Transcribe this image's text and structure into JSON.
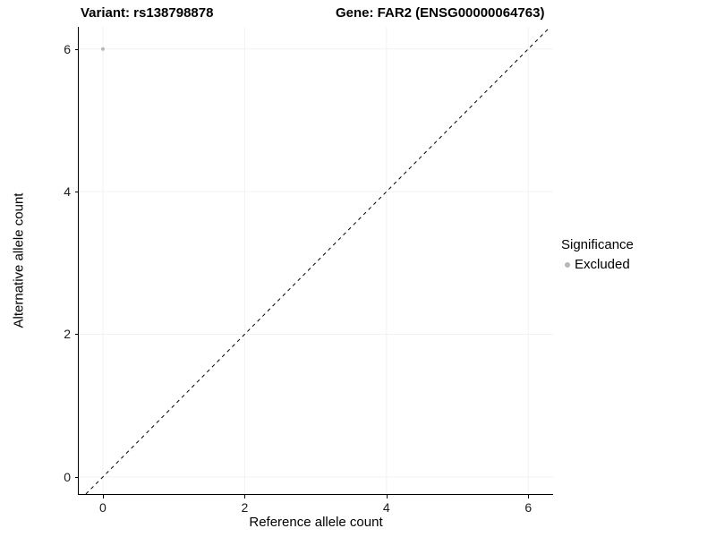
{
  "page": {
    "background": "#ffffff"
  },
  "chart_data": {
    "type": "scatter",
    "titles": {
      "left": "Variant: rs138798878",
      "right": "Gene: FAR2 (ENSG00000064763)"
    },
    "xlabel": "Reference allele count",
    "ylabel": "Alternative allele count",
    "xlim": [
      -0.34,
      6.35
    ],
    "ylim": [
      -0.24,
      6.31
    ],
    "xticks": [
      0,
      2,
      4,
      6
    ],
    "yticks": [
      0,
      2,
      4,
      6
    ],
    "grid": {
      "show": true,
      "color": "#f2f2f2"
    },
    "identity_line": {
      "style": "dashed",
      "color": "#000000",
      "dash": [
        4,
        4
      ]
    },
    "series": [
      {
        "name": "Excluded",
        "color": "#b8b8b8",
        "point_radius": 2,
        "points": [
          [
            0,
            6
          ]
        ]
      }
    ],
    "legend": {
      "title": "Significance",
      "position": "right",
      "entries": [
        {
          "label": "Excluded",
          "color": "#b8b8b8"
        }
      ]
    }
  }
}
